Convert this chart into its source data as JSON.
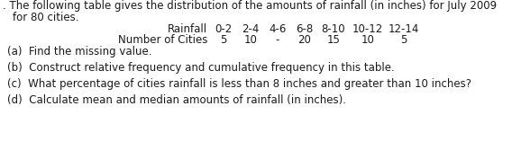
{
  "line1": ". The following table gives the distribution of the amounts of rainfall (in inches) for July 2009",
  "line2": "for 80 cities.",
  "row1_label": "Rainfall",
  "row1_cols": [
    "0-2",
    "2-4",
    "4-6",
    "6-8",
    "8-10",
    "10-12",
    "12-14"
  ],
  "row2_label": "Number of Cities",
  "row2_cols": [
    "5",
    "10",
    "-",
    "20",
    "15",
    "10",
    "5"
  ],
  "qa": "(a)  Find the missing value.",
  "qb": "(b)  Construct relative frequency and cumulative frequency in this table.",
  "qc": "(c)  What percentage of cities rainfall is less than 8 inches and greater than 10 inches?",
  "qd": "(d)  Calculate mean and median amounts of rainfall (in inches).",
  "bg_color": "#ffffff",
  "text_color": "#1a1a1a",
  "font_size": 8.5
}
